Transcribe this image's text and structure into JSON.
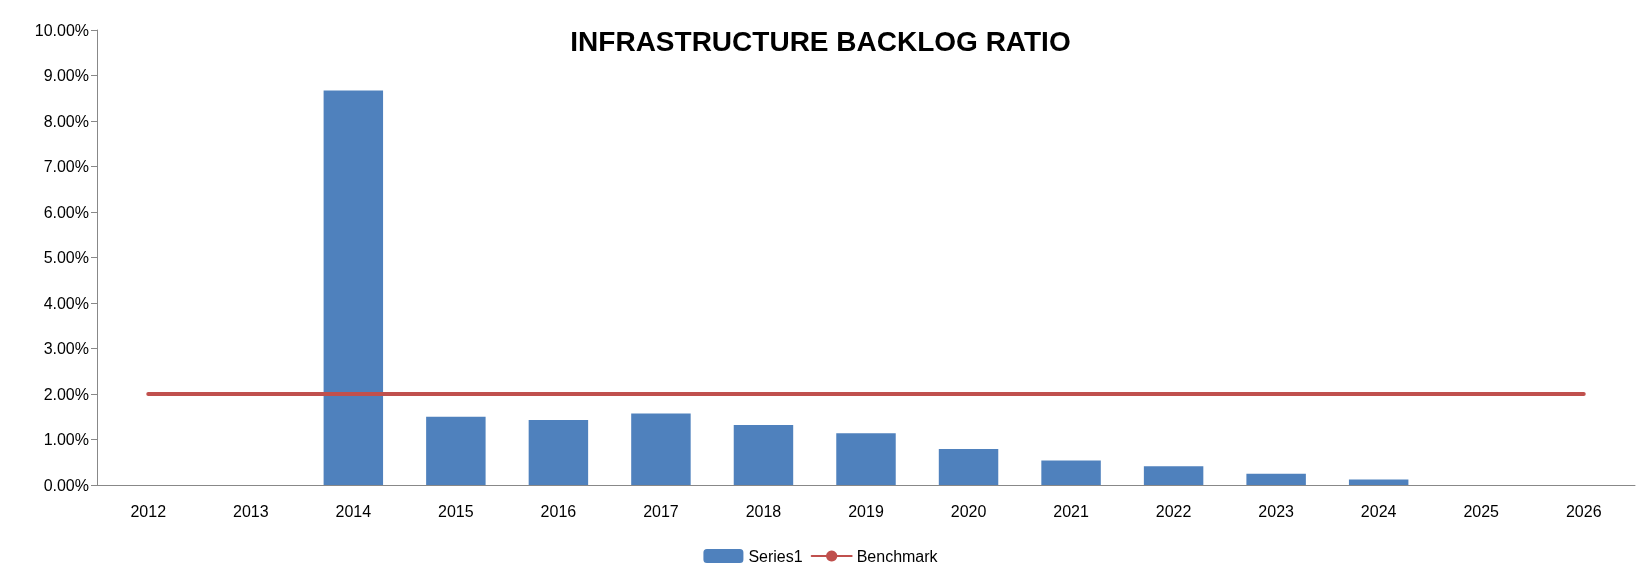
{
  "chart_data": {
    "type": "bar",
    "title": "INFRASTRUCTURE BACKLOG RATIO",
    "categories": [
      "2012",
      "2013",
      "2014",
      "2015",
      "2016",
      "2017",
      "2018",
      "2019",
      "2020",
      "2021",
      "2022",
      "2023",
      "2024",
      "2025",
      "2026"
    ],
    "series": [
      {
        "name": "Series1",
        "color": "#4f81bd",
        "values": [
          0,
          0,
          8.67,
          1.5,
          1.43,
          1.57,
          1.32,
          1.14,
          0.79,
          0.54,
          0.41,
          0.25,
          0.12,
          0,
          0
        ]
      },
      {
        "name": "Benchmark",
        "type": "line",
        "color": "#c0504d",
        "values": [
          2,
          2,
          2,
          2,
          2,
          2,
          2,
          2,
          2,
          2,
          2,
          2,
          2,
          2,
          2
        ]
      }
    ],
    "ylim": [
      0,
      10
    ],
    "yticks": [
      {
        "value": 0,
        "label": "0.00%"
      },
      {
        "value": 1,
        "label": "1.00%"
      },
      {
        "value": 2,
        "label": "2.00%"
      },
      {
        "value": 3,
        "label": "3.00%"
      },
      {
        "value": 4,
        "label": "4.00%"
      },
      {
        "value": 5,
        "label": "5.00%"
      },
      {
        "value": 6,
        "label": "6.00%"
      },
      {
        "value": 7,
        "label": "7.00%"
      },
      {
        "value": 8,
        "label": "8.00%"
      },
      {
        "value": 9,
        "label": "9.00%"
      },
      {
        "value": 10,
        "label": "10.00%"
      }
    ],
    "grid": false,
    "legend": "bottom",
    "marker": "none"
  }
}
